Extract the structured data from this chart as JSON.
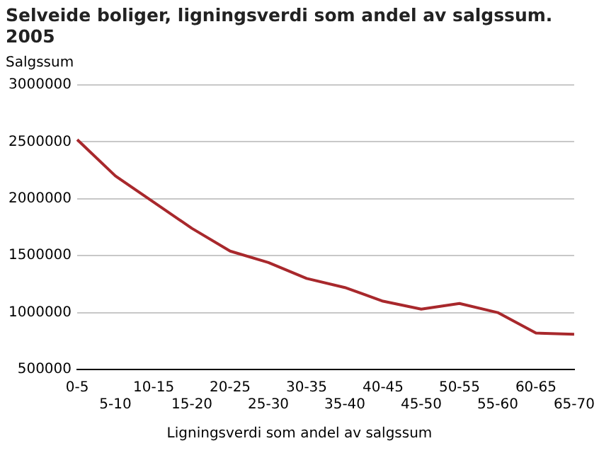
{
  "chart_data": {
    "type": "line",
    "title": "Selveide boliger, ligningsverdi som andel av salgssum. 2005",
    "ylabel": "Salgssum",
    "xlabel": "Ligningsverdi som andel av salgssum",
    "categories": [
      "0-5",
      "5-10",
      "10-15",
      "15-20",
      "20-25",
      "25-30",
      "30-35",
      "35-40",
      "40-45",
      "45-50",
      "50-55",
      "55-60",
      "60-65",
      "65-70"
    ],
    "series": [
      {
        "color": "#a8282c",
        "values": [
          2520000,
          2200000,
          1970000,
          1740000,
          1540000,
          1440000,
          1300000,
          1220000,
          1100000,
          1030000,
          1080000,
          1000000,
          820000,
          810000
        ]
      }
    ],
    "ylim": [
      500000,
      3000000
    ],
    "yticks": [
      500000,
      1000000,
      1500000,
      2000000,
      2500000,
      3000000
    ],
    "grid": "y",
    "legend": false,
    "marker": "none",
    "line_style": "solid"
  }
}
